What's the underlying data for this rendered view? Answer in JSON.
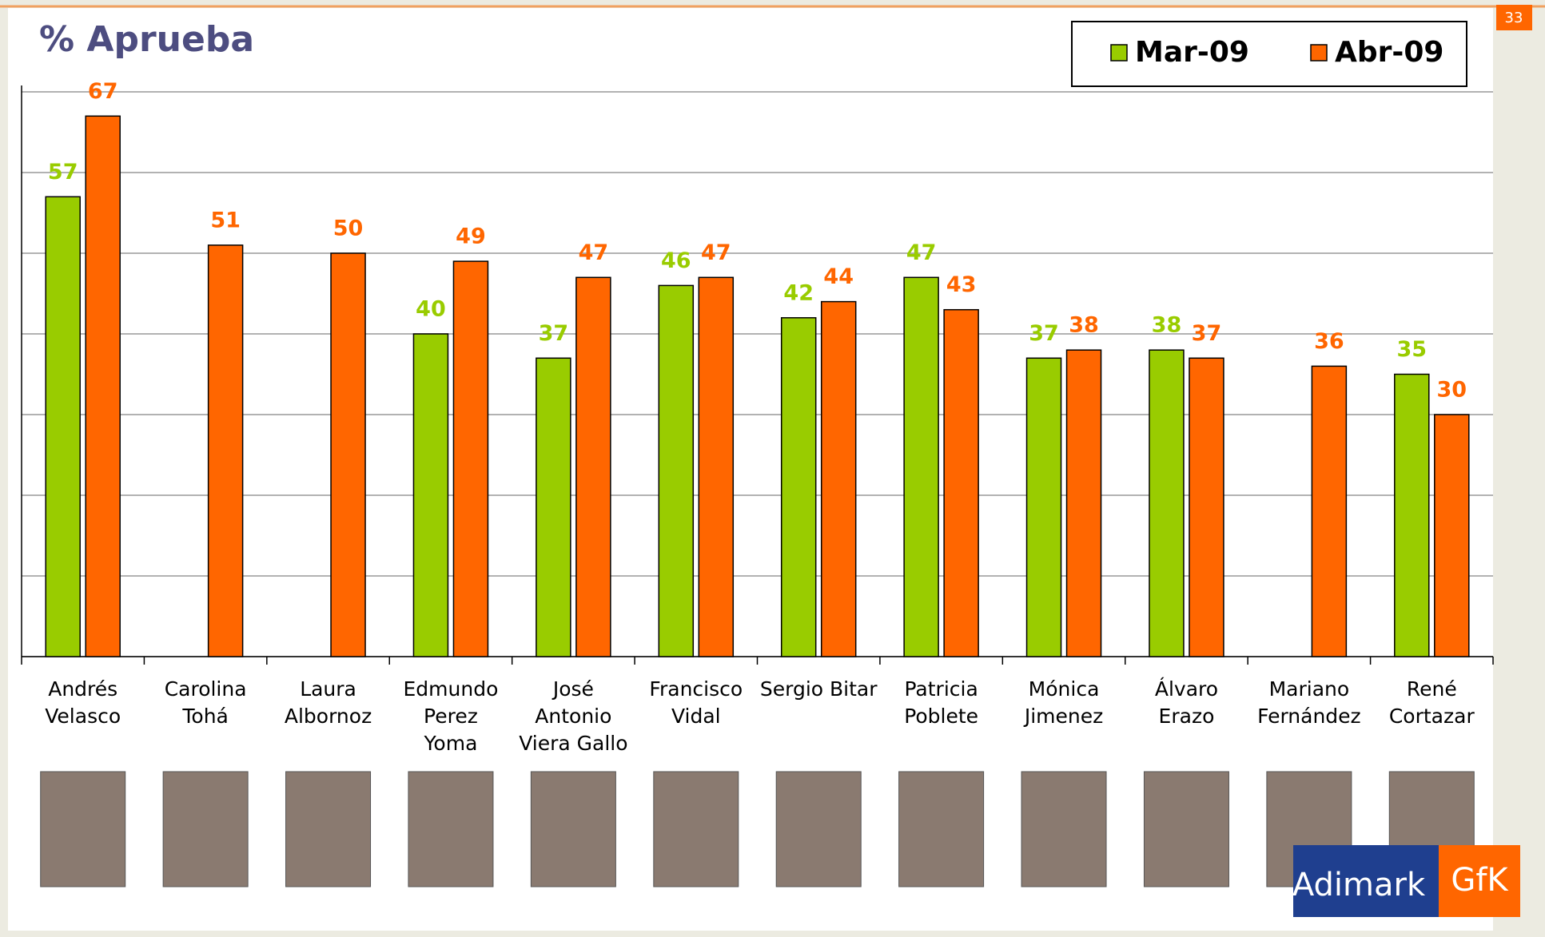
{
  "page_number": "33",
  "logo": [
    "Adimark",
    "GfK"
  ],
  "chart_data": {
    "type": "bar",
    "title": "% Aprueba",
    "categories": [
      [
        "Andrés",
        "Velasco"
      ],
      [
        "Carolina",
        "Tohá"
      ],
      [
        "Laura",
        "Albornoz"
      ],
      [
        "Edmundo",
        "Perez",
        "Yoma"
      ],
      [
        "José",
        "Antonio",
        "Viera Gallo"
      ],
      [
        "Francisco",
        "Vidal"
      ],
      [
        "Sergio Bitar"
      ],
      [
        "Patricia",
        "Poblete"
      ],
      [
        "Mónica",
        "Jimenez"
      ],
      [
        "Álvaro",
        "Erazo"
      ],
      [
        "Mariano",
        "Fernández"
      ],
      [
        "René",
        "Cortazar"
      ]
    ],
    "series": [
      {
        "name": "Mar-09",
        "color": "#99cc00",
        "values": [
          57,
          null,
          null,
          40,
          37,
          46,
          42,
          47,
          37,
          38,
          null,
          35
        ]
      },
      {
        "name": "Abr-09",
        "color": "#ff6600",
        "values": [
          67,
          51,
          50,
          49,
          47,
          47,
          44,
          43,
          38,
          37,
          36,
          30
        ]
      }
    ],
    "ylim": [
      0,
      70
    ],
    "yticks": [
      0,
      10,
      20,
      30,
      40,
      50,
      60,
      70
    ],
    "grid": true,
    "legend": "top-right"
  }
}
